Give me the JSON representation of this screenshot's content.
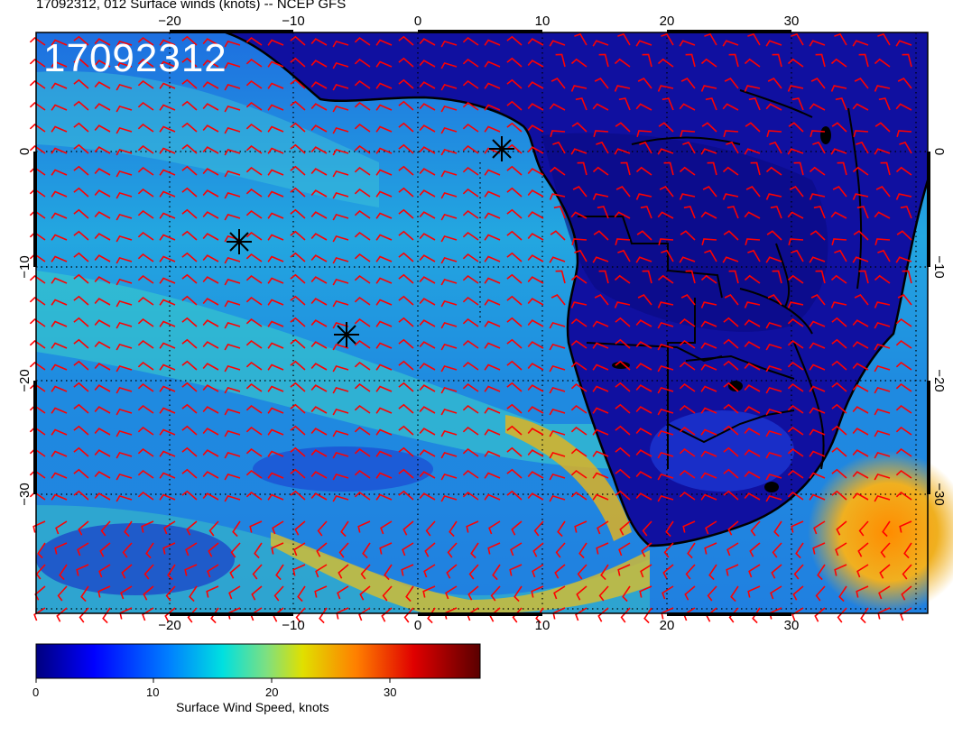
{
  "title": "17092312, 012 Surface winds (knots) -- NCEP GFS",
  "stamp": "17092312",
  "colorbar": {
    "label": "Surface Wind Speed, knots",
    "ticks": [
      "0",
      "10",
      "20",
      "30"
    ],
    "colors": [
      "#00007f",
      "#0000ff",
      "#0080ff",
      "#00e0e0",
      "#7fe07f",
      "#e0e000",
      "#ff8000",
      "#e00000",
      "#5a0000"
    ]
  },
  "map": {
    "lon_labels": [
      "−20",
      "−10",
      "0",
      "10",
      "20",
      "30"
    ],
    "lat_labels": [
      "0",
      "−10",
      "−20",
      "−30"
    ],
    "barb_color": "#ff0000",
    "land_outline_color": "#000000"
  }
}
